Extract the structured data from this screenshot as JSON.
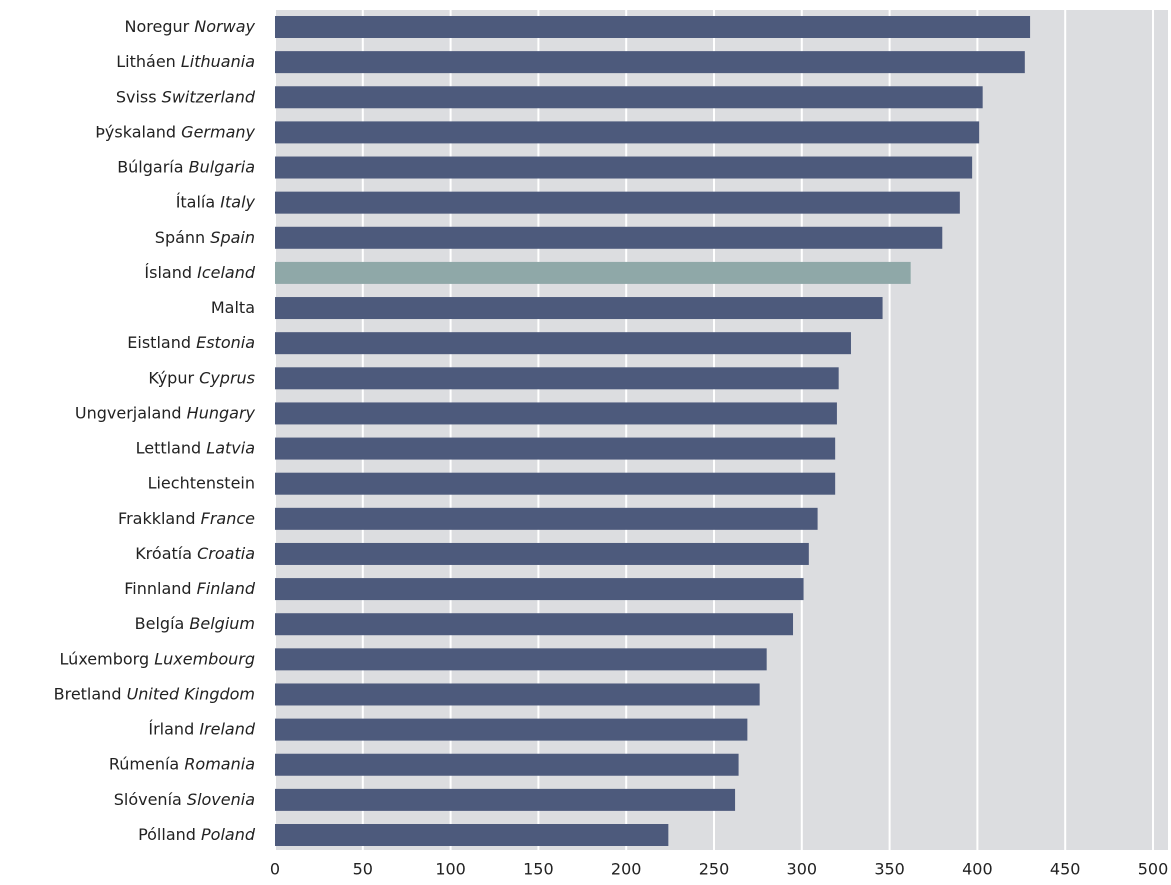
{
  "chart_data": {
    "type": "hbar",
    "categories": [
      "Noregur",
      "Litháen",
      "Sviss",
      "Þýskaland",
      "Búlgaría",
      "Ítalía",
      "Spánn",
      "Ísland",
      "Malta",
      "Eistland",
      "Kýpur",
      "Ungverjaland",
      "Lettland",
      "Liechtenstein",
      "Frakkland",
      "Króatía",
      "Finnland",
      "Belgía",
      "Lúxemborg",
      "Bretland",
      "Írland",
      "Rúmenía",
      "Slóvenía",
      "Pólland"
    ],
    "categories_en": [
      "Norway",
      "Lithuania",
      "Switzerland",
      "Germany",
      "Bulgaria",
      "Italy",
      "Spain",
      "Iceland",
      null,
      "Estonia",
      "Cyprus",
      "Hungary",
      "Latvia",
      null,
      "France",
      "Croatia",
      "Finland",
      "Belgium",
      "Luxembourg",
      "United Kingdom",
      "Ireland",
      "Romania",
      "Slovenia",
      "Poland"
    ],
    "values": [
      430,
      427,
      403,
      401,
      397,
      390,
      380,
      362,
      346,
      328,
      321,
      320,
      319,
      319,
      309,
      304,
      301,
      295,
      280,
      276,
      269,
      264,
      262,
      224
    ],
    "colors": [
      "#4d5a7c",
      "#4d5a7c",
      "#4d5a7c",
      "#4d5a7c",
      "#4d5a7c",
      "#4d5a7c",
      "#4d5a7c",
      "#8fa8a8",
      "#4d5a7c",
      "#4d5a7c",
      "#4d5a7c",
      "#4d5a7c",
      "#4d5a7c",
      "#4d5a7c",
      "#4d5a7c",
      "#4d5a7c",
      "#4d5a7c",
      "#4d5a7c",
      "#4d5a7c",
      "#4d5a7c",
      "#4d5a7c",
      "#4d5a7c",
      "#4d5a7c",
      "#4d5a7c"
    ],
    "xlim": [
      0,
      500
    ],
    "xticks": [
      0,
      50,
      100,
      150,
      200,
      250,
      300,
      350,
      400,
      450,
      500
    ],
    "grid": true
  }
}
